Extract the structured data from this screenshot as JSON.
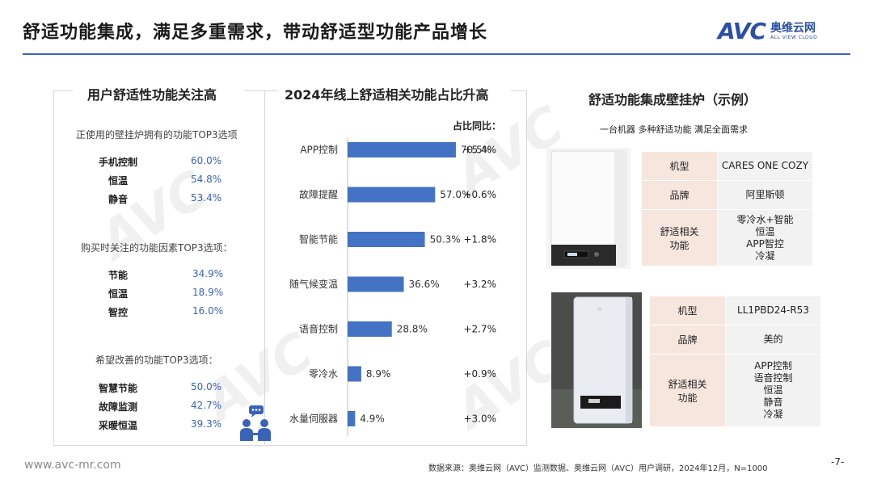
{
  "header": {
    "title": "舒适功能集成，满足多重需求，带动舒适型功能产品增长",
    "logo_mark": "AVC",
    "logo_cn": "奥维云网",
    "logo_en": "ALL VIEW CLOUD"
  },
  "left_panel": {
    "title": "用户舒适性功能关注高",
    "sections": [
      {
        "heading": "正使用的壁挂炉拥有的功能TOP3选项",
        "items": [
          {
            "label": "手机控制",
            "value": "60.0%"
          },
          {
            "label": "恒温",
            "value": "54.8%"
          },
          {
            "label": "静音",
            "value": "53.4%"
          }
        ]
      },
      {
        "heading": "购买时关注的功能因素TOP3选项：",
        "items": [
          {
            "label": "节能",
            "value": "34.9%"
          },
          {
            "label": "恒温",
            "value": "18.9%"
          },
          {
            "label": "智控",
            "value": "16.0%"
          }
        ]
      },
      {
        "heading": "希望改善的功能TOP3选项：",
        "items": [
          {
            "label": "智慧节能",
            "value": "50.0%"
          },
          {
            "label": "故障监测",
            "value": "42.7%"
          },
          {
            "label": "采暖恒温",
            "value": "39.3%"
          }
        ]
      }
    ],
    "icon": "people-meeting-icon"
  },
  "chart_data": {
    "type": "bar",
    "orientation": "horizontal",
    "title": "2024年线上舒适相关功能占比升高",
    "yoy_header": "占比同比：",
    "categories": [
      "APP控制",
      "故障提醒",
      "智能节能",
      "随气候变温",
      "语音控制",
      "零冷水",
      "水量伺服器"
    ],
    "values": [
      70.5,
      57.0,
      50.3,
      36.6,
      28.8,
      8.9,
      4.9
    ],
    "value_labels": [
      "70.5%",
      "57.0%",
      "50.3%",
      "36.6%",
      "28.8%",
      "8.9%",
      "4.9%"
    ],
    "yoy": [
      "+5.4%",
      "+0.6%",
      "+1.8%",
      "+3.2%",
      "+2.7%",
      "+0.9%",
      "+3.0%"
    ],
    "xlim": [
      0,
      100
    ],
    "bar_color": "#4472c4",
    "grid": false
  },
  "right_panel": {
    "title": "舒适功能集成壁挂炉（示例）",
    "subtitle": "一台机器 多种舒适功能 满足全面需求",
    "products": [
      {
        "image": "white-wall-boiler-image",
        "rows": [
          {
            "key": "机型",
            "value": [
              "CARES ONE COZY"
            ]
          },
          {
            "key": "品牌",
            "value": [
              "阿里斯顿"
            ]
          },
          {
            "key": "舒适相关功能",
            "value": [
              "零冷水+智能",
              "恒温",
              "APP智控",
              "冷凝"
            ]
          }
        ]
      },
      {
        "image": "silver-wall-boiler-image",
        "rows": [
          {
            "key": "机型",
            "value": [
              "LL1PBD24-R53"
            ]
          },
          {
            "key": "品牌",
            "value": [
              "美的"
            ]
          },
          {
            "key": "舒适相关功能",
            "value": [
              "APP控制",
              "语音控制",
              "恒温",
              "静音",
              "冷凝"
            ]
          }
        ]
      }
    ]
  },
  "footer": {
    "website": "www.avc-mr.com",
    "source": "数据来源：奥维云网（AVC）监测数据、奥维云网（AVC）用户调研，2024年12月，N=1000",
    "page": "-7-"
  },
  "colors": {
    "accent": "#3a63b8",
    "bar": "#4472c4",
    "spec_key_bg": "#f7e6de",
    "spec_value_bg": "#f2f2f2"
  }
}
